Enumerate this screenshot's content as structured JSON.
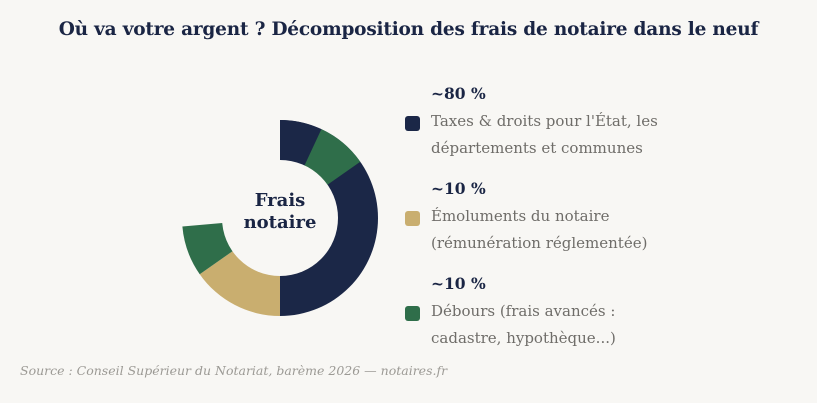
{
  "title": "Où va votre argent ? Décomposition des frais de notaire dans le neuf",
  "center_label": [
    "Frais",
    "notaire"
  ],
  "source": "Source : Conseil Supérieur du Notariat, barème 2026 — notaires.fr",
  "legend": [
    {
      "percent": "~80 %",
      "desc_line1": "Taxes & droits pour l'État, les",
      "desc_line2": "départements et communes",
      "color": "#1b2747"
    },
    {
      "percent": "~10 %",
      "desc_line1": "Émoluments du notaire",
      "desc_line2": "(rémunération réglementée)",
      "color": "#c9ae6f"
    },
    {
      "percent": "~10 %",
      "desc_line1": "Débours (frais avancés :",
      "desc_line2": "cadastre, hypothèque...)",
      "color": "#2f6e4a"
    }
  ],
  "chart_data": {
    "type": "pie",
    "style": "donut",
    "categories": [
      "Taxes & droits pour l'État, les départements et communes",
      "Émoluments du notaire (rémunération réglementée)",
      "Débours (frais avancés : cadastre, hypothèque...)"
    ],
    "values": [
      80,
      10,
      10
    ],
    "colors": [
      "#1b2747",
      "#c9ae6f",
      "#2f6e4a"
    ],
    "visible_segments": [
      {
        "category_index": 0,
        "start_deg": 0,
        "end_deg": 180
      },
      {
        "category_index": 1,
        "start_deg": 180,
        "end_deg": 235
      },
      {
        "category_index": 2,
        "start_deg": 235,
        "end_deg": 265
      },
      {
        "category_index": 0,
        "start_deg": 0,
        "end_deg": 25
      },
      {
        "category_index": 2,
        "start_deg": 25,
        "end_deg": 55
      }
    ]
  }
}
